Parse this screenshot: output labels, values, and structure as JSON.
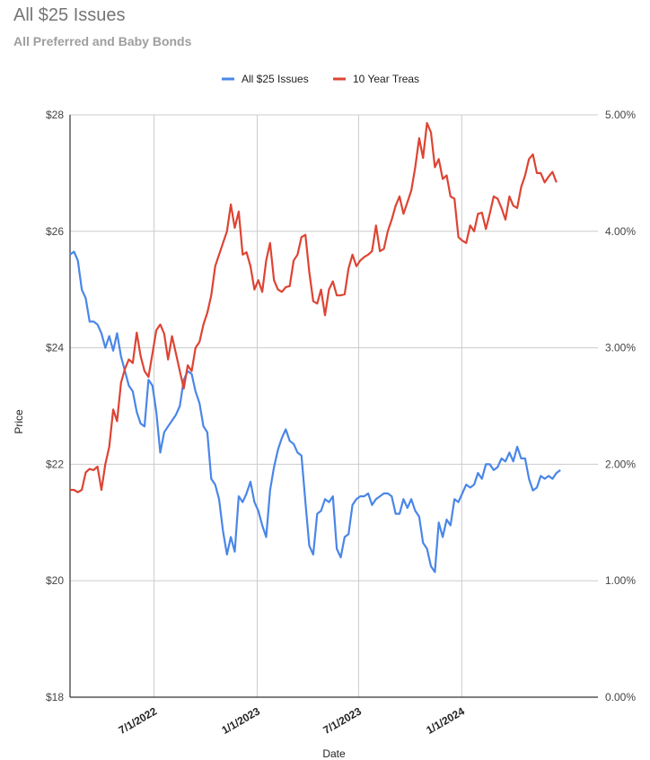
{
  "title": "All $25 Issues",
  "subtitle": "All Preferred and Baby Bonds",
  "colors": {
    "series_a": "#4a86e8",
    "series_b": "#dd4433",
    "grid": "#cccccc",
    "axis": "#333333"
  },
  "chart_data": {
    "type": "line",
    "title": "All $25 Issues",
    "subtitle": "All Preferred and Baby Bonds",
    "xlabel": "Date",
    "ylabel": "Price",
    "legend_position": "top",
    "grid": true,
    "x_range": [
      "2022-02-01",
      "2024-08-31"
    ],
    "x_ticks": [
      "2022-07-01",
      "2023-01-01",
      "2023-07-01",
      "2024-01-01"
    ],
    "x_tick_labels": [
      "7/1/2022",
      "1/1/2023",
      "7/1/2023",
      "1/1/2024"
    ],
    "y_left": {
      "range": [
        18,
        28
      ],
      "ticks": [
        18,
        20,
        22,
        24,
        26,
        28
      ],
      "tick_labels": [
        "$18",
        "$20",
        "$22",
        "$24",
        "$26",
        "$28"
      ]
    },
    "y_right": {
      "range": [
        0,
        5
      ],
      "ticks": [
        0,
        1,
        2,
        3,
        4,
        5
      ],
      "tick_labels": [
        "0.00%",
        "1.00%",
        "2.00%",
        "3.00%",
        "4.00%",
        "5.00%"
      ]
    },
    "series": [
      {
        "name": "All $25 Issues",
        "axis": "left",
        "color": "#4a86e8",
        "points": [
          [
            "2022-02-01",
            25.6
          ],
          [
            "2022-02-08",
            25.65
          ],
          [
            "2022-02-15",
            25.5
          ],
          [
            "2022-02-22",
            25.0
          ],
          [
            "2022-03-01",
            24.85
          ],
          [
            "2022-03-08",
            24.45
          ],
          [
            "2022-03-15",
            24.45
          ],
          [
            "2022-03-22",
            24.4
          ],
          [
            "2022-03-29",
            24.25
          ],
          [
            "2022-04-05",
            24.0
          ],
          [
            "2022-04-12",
            24.2
          ],
          [
            "2022-04-19",
            23.95
          ],
          [
            "2022-04-26",
            24.25
          ],
          [
            "2022-05-03",
            23.85
          ],
          [
            "2022-05-10",
            23.6
          ],
          [
            "2022-05-17",
            23.35
          ],
          [
            "2022-05-24",
            23.25
          ],
          [
            "2022-05-31",
            22.9
          ],
          [
            "2022-06-07",
            22.7
          ],
          [
            "2022-06-14",
            22.65
          ],
          [
            "2022-06-21",
            23.45
          ],
          [
            "2022-06-28",
            23.35
          ],
          [
            "2022-07-05",
            22.9
          ],
          [
            "2022-07-12",
            22.2
          ],
          [
            "2022-07-19",
            22.55
          ],
          [
            "2022-07-26",
            22.65
          ],
          [
            "2022-08-02",
            22.75
          ],
          [
            "2022-08-09",
            22.85
          ],
          [
            "2022-08-16",
            23.0
          ],
          [
            "2022-08-23",
            23.45
          ],
          [
            "2022-08-30",
            23.6
          ],
          [
            "2022-09-06",
            23.55
          ],
          [
            "2022-09-13",
            23.25
          ],
          [
            "2022-09-20",
            23.05
          ],
          [
            "2022-09-27",
            22.65
          ],
          [
            "2022-10-04",
            22.55
          ],
          [
            "2022-10-11",
            21.75
          ],
          [
            "2022-10-18",
            21.65
          ],
          [
            "2022-10-25",
            21.4
          ],
          [
            "2022-11-01",
            20.85
          ],
          [
            "2022-11-08",
            20.45
          ],
          [
            "2022-11-15",
            20.75
          ],
          [
            "2022-11-22",
            20.5
          ],
          [
            "2022-11-29",
            21.45
          ],
          [
            "2022-12-06",
            21.35
          ],
          [
            "2022-12-13",
            21.5
          ],
          [
            "2022-12-20",
            21.7
          ],
          [
            "2022-12-27",
            21.35
          ],
          [
            "2023-01-03",
            21.2
          ],
          [
            "2023-01-10",
            20.95
          ],
          [
            "2023-01-17",
            20.75
          ],
          [
            "2023-01-24",
            21.55
          ],
          [
            "2023-01-31",
            21.95
          ],
          [
            "2023-02-07",
            22.25
          ],
          [
            "2023-02-14",
            22.45
          ],
          [
            "2023-02-21",
            22.6
          ],
          [
            "2023-02-28",
            22.4
          ],
          [
            "2023-03-07",
            22.35
          ],
          [
            "2023-03-14",
            22.2
          ],
          [
            "2023-03-21",
            22.15
          ],
          [
            "2023-03-28",
            21.35
          ],
          [
            "2023-04-04",
            20.6
          ],
          [
            "2023-04-11",
            20.45
          ],
          [
            "2023-04-18",
            21.15
          ],
          [
            "2023-04-25",
            21.2
          ],
          [
            "2023-05-02",
            21.4
          ],
          [
            "2023-05-09",
            21.35
          ],
          [
            "2023-05-16",
            21.45
          ],
          [
            "2023-05-23",
            20.55
          ],
          [
            "2023-05-30",
            20.4
          ],
          [
            "2023-06-06",
            20.75
          ],
          [
            "2023-06-13",
            20.8
          ],
          [
            "2023-06-20",
            21.3
          ],
          [
            "2023-06-27",
            21.4
          ],
          [
            "2023-07-04",
            21.45
          ],
          [
            "2023-07-11",
            21.45
          ],
          [
            "2023-07-18",
            21.5
          ],
          [
            "2023-07-25",
            21.3
          ],
          [
            "2023-08-01",
            21.4
          ],
          [
            "2023-08-08",
            21.45
          ],
          [
            "2023-08-15",
            21.5
          ],
          [
            "2023-08-22",
            21.5
          ],
          [
            "2023-08-29",
            21.45
          ],
          [
            "2023-09-05",
            21.15
          ],
          [
            "2023-09-12",
            21.15
          ],
          [
            "2023-09-19",
            21.4
          ],
          [
            "2023-09-26",
            21.25
          ],
          [
            "2023-10-03",
            21.4
          ],
          [
            "2023-10-10",
            21.2
          ],
          [
            "2023-10-17",
            21.1
          ],
          [
            "2023-10-24",
            20.65
          ],
          [
            "2023-10-31",
            20.55
          ],
          [
            "2023-11-07",
            20.25
          ],
          [
            "2023-11-14",
            20.15
          ],
          [
            "2023-11-21",
            21.0
          ],
          [
            "2023-11-28",
            20.75
          ],
          [
            "2023-12-05",
            21.05
          ],
          [
            "2023-12-12",
            20.95
          ],
          [
            "2023-12-19",
            21.4
          ],
          [
            "2023-12-26",
            21.35
          ],
          [
            "2024-01-02",
            21.5
          ],
          [
            "2024-01-09",
            21.65
          ],
          [
            "2024-01-16",
            21.6
          ],
          [
            "2024-01-23",
            21.65
          ],
          [
            "2024-01-30",
            21.85
          ],
          [
            "2024-02-06",
            21.75
          ],
          [
            "2024-02-13",
            22.0
          ],
          [
            "2024-02-20",
            22.0
          ],
          [
            "2024-02-27",
            21.9
          ],
          [
            "2024-03-05",
            21.95
          ],
          [
            "2024-03-12",
            22.1
          ],
          [
            "2024-03-19",
            22.05
          ],
          [
            "2024-03-26",
            22.2
          ],
          [
            "2024-04-02",
            22.05
          ],
          [
            "2024-04-09",
            22.3
          ],
          [
            "2024-04-16",
            22.1
          ],
          [
            "2024-04-23",
            22.1
          ],
          [
            "2024-04-30",
            21.75
          ],
          [
            "2024-05-07",
            21.55
          ],
          [
            "2024-05-14",
            21.6
          ],
          [
            "2024-05-21",
            21.8
          ],
          [
            "2024-05-28",
            21.75
          ],
          [
            "2024-06-04",
            21.8
          ],
          [
            "2024-06-11",
            21.75
          ],
          [
            "2024-06-18",
            21.85
          ],
          [
            "2024-06-25",
            21.9
          ]
        ]
      },
      {
        "name": "10 Year Treas",
        "axis": "right",
        "color": "#dd4433",
        "points": [
          [
            "2022-02-01",
            1.78
          ],
          [
            "2022-02-08",
            1.78
          ],
          [
            "2022-02-15",
            1.76
          ],
          [
            "2022-02-22",
            1.78
          ],
          [
            "2022-03-01",
            1.93
          ],
          [
            "2022-03-08",
            1.96
          ],
          [
            "2022-03-15",
            1.95
          ],
          [
            "2022-03-22",
            1.98
          ],
          [
            "2022-03-29",
            1.78
          ],
          [
            "2022-04-05",
            2.0
          ],
          [
            "2022-04-12",
            2.15
          ],
          [
            "2022-04-19",
            2.47
          ],
          [
            "2022-04-26",
            2.37
          ],
          [
            "2022-05-03",
            2.7
          ],
          [
            "2022-05-10",
            2.82
          ],
          [
            "2022-05-17",
            2.9
          ],
          [
            "2022-05-24",
            2.87
          ],
          [
            "2022-05-31",
            3.13
          ],
          [
            "2022-06-07",
            2.93
          ],
          [
            "2022-06-14",
            2.8
          ],
          [
            "2022-06-21",
            2.75
          ],
          [
            "2022-06-28",
            2.95
          ],
          [
            "2022-07-05",
            3.15
          ],
          [
            "2022-07-12",
            3.2
          ],
          [
            "2022-07-19",
            3.12
          ],
          [
            "2022-07-26",
            2.9
          ],
          [
            "2022-08-02",
            3.1
          ],
          [
            "2022-08-09",
            2.95
          ],
          [
            "2022-08-16",
            2.8
          ],
          [
            "2022-08-23",
            2.65
          ],
          [
            "2022-08-30",
            2.85
          ],
          [
            "2022-09-06",
            2.8
          ],
          [
            "2022-09-13",
            3.0
          ],
          [
            "2022-09-20",
            3.05
          ],
          [
            "2022-09-27",
            3.2
          ],
          [
            "2022-10-04",
            3.3
          ],
          [
            "2022-10-11",
            3.45
          ],
          [
            "2022-10-18",
            3.7
          ],
          [
            "2022-10-25",
            3.8
          ],
          [
            "2022-11-01",
            3.9
          ],
          [
            "2022-11-08",
            4.0
          ],
          [
            "2022-11-15",
            4.23
          ],
          [
            "2022-11-22",
            4.03
          ],
          [
            "2022-11-29",
            4.17
          ],
          [
            "2022-12-06",
            3.8
          ],
          [
            "2022-12-13",
            3.82
          ],
          [
            "2022-12-20",
            3.7
          ],
          [
            "2022-12-27",
            3.5
          ],
          [
            "2023-01-03",
            3.58
          ],
          [
            "2023-01-10",
            3.48
          ],
          [
            "2023-01-17",
            3.75
          ],
          [
            "2023-01-24",
            3.9
          ],
          [
            "2023-01-31",
            3.58
          ],
          [
            "2023-02-07",
            3.5
          ],
          [
            "2023-02-14",
            3.48
          ],
          [
            "2023-02-21",
            3.52
          ],
          [
            "2023-02-28",
            3.53
          ],
          [
            "2023-03-07",
            3.75
          ],
          [
            "2023-03-14",
            3.8
          ],
          [
            "2023-03-21",
            3.95
          ],
          [
            "2023-03-28",
            3.97
          ],
          [
            "2023-04-04",
            3.65
          ],
          [
            "2023-04-11",
            3.4
          ],
          [
            "2023-04-18",
            3.38
          ],
          [
            "2023-04-25",
            3.5
          ],
          [
            "2023-05-02",
            3.28
          ],
          [
            "2023-05-09",
            3.5
          ],
          [
            "2023-05-16",
            3.57
          ],
          [
            "2023-05-23",
            3.45
          ],
          [
            "2023-05-30",
            3.45
          ],
          [
            "2023-06-06",
            3.46
          ],
          [
            "2023-06-13",
            3.68
          ],
          [
            "2023-06-20",
            3.8
          ],
          [
            "2023-06-27",
            3.7
          ],
          [
            "2023-07-04",
            3.75
          ],
          [
            "2023-07-11",
            3.78
          ],
          [
            "2023-07-18",
            3.8
          ],
          [
            "2023-07-25",
            3.83
          ],
          [
            "2023-08-01",
            4.05
          ],
          [
            "2023-08-08",
            3.83
          ],
          [
            "2023-08-15",
            3.85
          ],
          [
            "2023-08-22",
            4.0
          ],
          [
            "2023-08-29",
            4.1
          ],
          [
            "2023-09-05",
            4.22
          ],
          [
            "2023-09-12",
            4.3
          ],
          [
            "2023-09-19",
            4.15
          ],
          [
            "2023-09-26",
            4.25
          ],
          [
            "2023-10-03",
            4.35
          ],
          [
            "2023-10-10",
            4.55
          ],
          [
            "2023-10-17",
            4.8
          ],
          [
            "2023-10-24",
            4.63
          ],
          [
            "2023-10-31",
            4.93
          ],
          [
            "2023-11-07",
            4.85
          ],
          [
            "2023-11-14",
            4.55
          ],
          [
            "2023-11-21",
            4.62
          ],
          [
            "2023-11-28",
            4.45
          ],
          [
            "2023-12-05",
            4.48
          ],
          [
            "2023-12-12",
            4.3
          ],
          [
            "2023-12-19",
            4.28
          ],
          [
            "2023-12-26",
            3.95
          ],
          [
            "2024-01-02",
            3.92
          ],
          [
            "2024-01-09",
            3.9
          ],
          [
            "2024-01-16",
            4.05
          ],
          [
            "2024-01-23",
            4.0
          ],
          [
            "2024-01-30",
            4.15
          ],
          [
            "2024-02-06",
            4.16
          ],
          [
            "2024-02-13",
            4.02
          ],
          [
            "2024-02-20",
            4.15
          ],
          [
            "2024-02-27",
            4.3
          ],
          [
            "2024-03-05",
            4.28
          ],
          [
            "2024-03-12",
            4.2
          ],
          [
            "2024-03-19",
            4.1
          ],
          [
            "2024-03-26",
            4.3
          ],
          [
            "2024-04-02",
            4.22
          ],
          [
            "2024-04-09",
            4.2
          ],
          [
            "2024-04-16",
            4.38
          ],
          [
            "2024-04-23",
            4.48
          ],
          [
            "2024-04-30",
            4.62
          ],
          [
            "2024-05-07",
            4.66
          ],
          [
            "2024-05-14",
            4.5
          ],
          [
            "2024-05-21",
            4.5
          ],
          [
            "2024-05-28",
            4.42
          ],
          [
            "2024-06-04",
            4.47
          ],
          [
            "2024-06-11",
            4.51
          ],
          [
            "2024-06-18",
            4.42
          ]
        ]
      }
    ]
  }
}
